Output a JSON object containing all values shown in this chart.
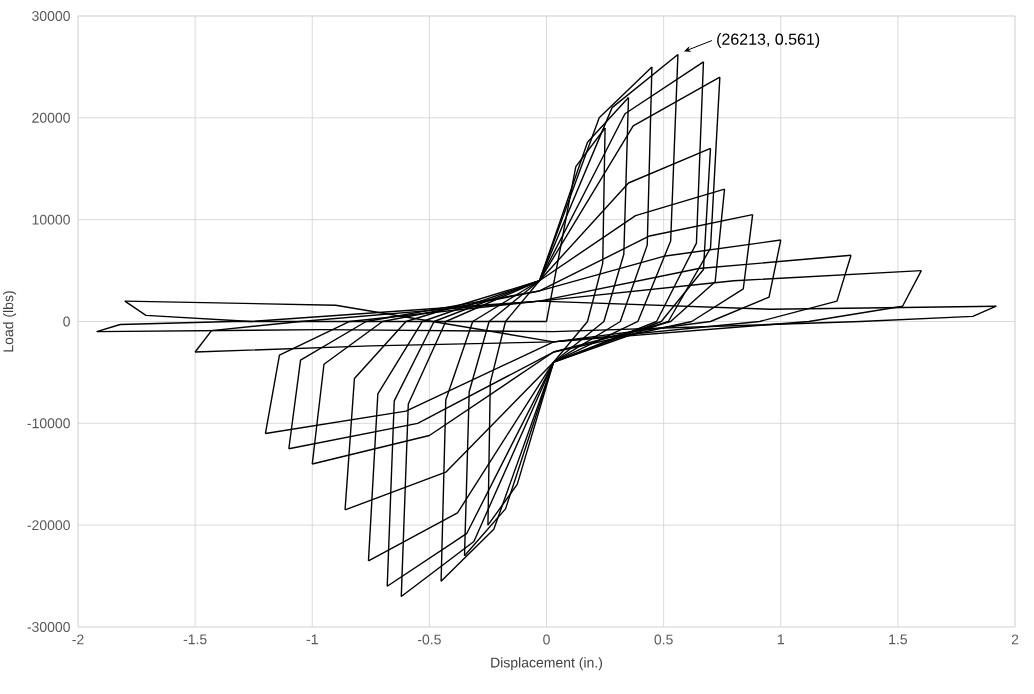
{
  "chart_data": {
    "type": "line",
    "xlabel": "Displacement (in.)",
    "ylabel": "Load (lbs)",
    "annotations": [
      {
        "text": "(26213, 0.561)",
        "x": 0.561,
        "y": 26213
      }
    ],
    "series": [
      {
        "color": "#000000",
        "x": [
          0,
          0.125,
          0.25
        ],
        "values": [
          0,
          15200,
          19000
        ]
      },
      {
        "color": "#000000",
        "x": [
          0.25,
          0.24,
          0.175,
          0.03,
          -0.125,
          -0.25
        ],
        "values": [
          19000,
          5700,
          0,
          -4000,
          -16000,
          -20000
        ]
      },
      {
        "color": "#000000",
        "x": [
          -0.25,
          -0.24,
          -0.175,
          -0.03,
          0.175,
          0.35
        ],
        "values": [
          -20000,
          -6000,
          0,
          4000,
          17600,
          22000
        ]
      },
      {
        "color": "#000000",
        "x": [
          0.35,
          0.33,
          0.245,
          0.03,
          -0.175,
          -0.35
        ],
        "values": [
          22000,
          6600,
          0,
          -4000,
          -18400,
          -23000
        ]
      },
      {
        "color": "#000000",
        "x": [
          -0.35,
          -0.33,
          -0.245,
          -0.03,
          0.225,
          0.45
        ],
        "values": [
          -23000,
          -6900,
          0,
          4000,
          20000,
          25000
        ]
      },
      {
        "color": "#000000",
        "x": [
          0.45,
          0.43,
          0.315,
          0.03,
          -0.225,
          -0.45
        ],
        "values": [
          25000,
          7500,
          0,
          -4000,
          -20400,
          -25500
        ]
      },
      {
        "color": "#000000",
        "x": [
          -0.45,
          -0.43,
          -0.315,
          -0.03,
          0.28,
          0.561
        ],
        "values": [
          -25500,
          -7700,
          0,
          4000,
          21000,
          26213
        ]
      },
      {
        "color": "#000000",
        "x": [
          0.561,
          0.53,
          0.39,
          0.03,
          -0.31,
          -0.62
        ],
        "values": [
          26213,
          7900,
          0,
          -4000,
          -21600,
          -27000
        ]
      },
      {
        "color": "#000000",
        "x": [
          -0.62,
          -0.59,
          -0.43,
          -0.03,
          0.335,
          0.67
        ],
        "values": [
          -27000,
          -8100,
          0,
          4000,
          20400,
          25500
        ]
      },
      {
        "color": "#000000",
        "x": [
          0.67,
          0.64,
          0.47,
          0.03,
          -0.34,
          -0.68
        ],
        "values": [
          25500,
          7700,
          0,
          -4000,
          -20800,
          -26000
        ]
      },
      {
        "color": "#000000",
        "x": [
          -0.68,
          -0.65,
          -0.48,
          -0.03,
          0.37,
          0.74
        ],
        "values": [
          -26000,
          -7800,
          0,
          4000,
          19200,
          24000
        ]
      },
      {
        "color": "#000000",
        "x": [
          0.74,
          0.7,
          0.52,
          0.03,
          -0.38,
          -0.76
        ],
        "values": [
          24000,
          7200,
          0,
          -4000,
          -18800,
          -23500
        ]
      },
      {
        "color": "#000000",
        "x": [
          -0.76,
          -0.72,
          -0.53,
          -0.03,
          0.35,
          0.7
        ],
        "values": [
          -23500,
          -7100,
          0,
          4000,
          13600,
          17000
        ]
      },
      {
        "color": "#000000",
        "x": [
          0.7,
          0.67,
          0.49,
          0.03,
          -0.43,
          -0.86
        ],
        "values": [
          17000,
          5100,
          0,
          -4000,
          -14800,
          -18500
        ]
      },
      {
        "color": "#000000",
        "x": [
          -0.86,
          -0.82,
          -0.6,
          -0.03,
          0.38,
          0.76
        ],
        "values": [
          -18500,
          -5600,
          0,
          4000,
          10400,
          13000
        ]
      },
      {
        "color": "#000000",
        "x": [
          0.76,
          0.72,
          0.53,
          0.03,
          -0.5,
          -1.0
        ],
        "values": [
          13000,
          3900,
          0,
          -3000,
          -11200,
          -14000
        ]
      },
      {
        "color": "#000000",
        "x": [
          -1.0,
          -0.95,
          -0.7,
          -0.03,
          0.44,
          0.88
        ],
        "values": [
          -14000,
          -4200,
          0,
          3000,
          8400,
          10500
        ]
      },
      {
        "color": "#000000",
        "x": [
          0.88,
          0.84,
          0.62,
          0.03,
          -0.55,
          -1.1
        ],
        "values": [
          10500,
          3200,
          0,
          -3000,
          -10000,
          -12500
        ]
      },
      {
        "color": "#000000",
        "x": [
          -1.1,
          -1.05,
          -0.77,
          -0.03,
          0.5,
          1.0
        ],
        "values": [
          -12500,
          -3800,
          0,
          3000,
          6400,
          8000
        ]
      },
      {
        "color": "#000000",
        "x": [
          1.0,
          0.95,
          0.7,
          0.03,
          -0.6,
          -1.2
        ],
        "values": [
          8000,
          2400,
          0,
          -2000,
          -8800,
          -11000
        ]
      },
      {
        "color": "#000000",
        "x": [
          -1.2,
          -1.14,
          -0.84,
          -0.03,
          0.65,
          1.3
        ],
        "values": [
          -11000,
          -3300,
          0,
          2000,
          5200,
          6500
        ]
      },
      {
        "color": "#000000",
        "x": [
          1.3,
          1.24,
          0.91,
          0.03,
          -0.75,
          -1.5
        ],
        "values": [
          6500,
          2000,
          0,
          -2000,
          -2400,
          -3000
        ]
      },
      {
        "color": "#000000",
        "x": [
          -1.5,
          -1.43,
          -1.05,
          -0.03,
          0.8,
          1.6
        ],
        "values": [
          -3000,
          -900,
          0,
          2000,
          4000,
          5000
        ]
      },
      {
        "color": "#000000",
        "x": [
          1.6,
          1.52,
          1.12,
          0.03,
          -0.9,
          -1.8
        ],
        "values": [
          5000,
          1500,
          0,
          -2000,
          1600,
          2000
        ]
      },
      {
        "color": "#000000",
        "x": [
          -1.8,
          -1.71,
          -1.26,
          -0.03,
          0.96,
          1.92
        ],
        "values": [
          2000,
          600,
          0,
          2000,
          1200,
          1500
        ]
      },
      {
        "color": "#000000",
        "x": [
          1.92,
          1.82,
          1.34,
          0.03,
          -0.96,
          -1.92
        ],
        "values": [
          1500,
          500,
          0,
          -1000,
          -800,
          -1000
        ]
      },
      {
        "color": "#000000",
        "x": [
          -1.92,
          -1.82,
          -1.34,
          0
        ],
        "values": [
          -1000,
          -300,
          0,
          0
        ]
      }
    ],
    "line_style": "solid",
    "marker": "none",
    "xlim": [
      -2,
      2
    ],
    "ylim": [
      -30000,
      30000
    ],
    "xticks": [
      -2,
      -1.5,
      -1,
      -0.5,
      0,
      0.5,
      1,
      1.5,
      2
    ],
    "yticks": [
      -30000,
      -20000,
      -10000,
      0,
      10000,
      20000,
      30000
    ],
    "grid": true
  }
}
